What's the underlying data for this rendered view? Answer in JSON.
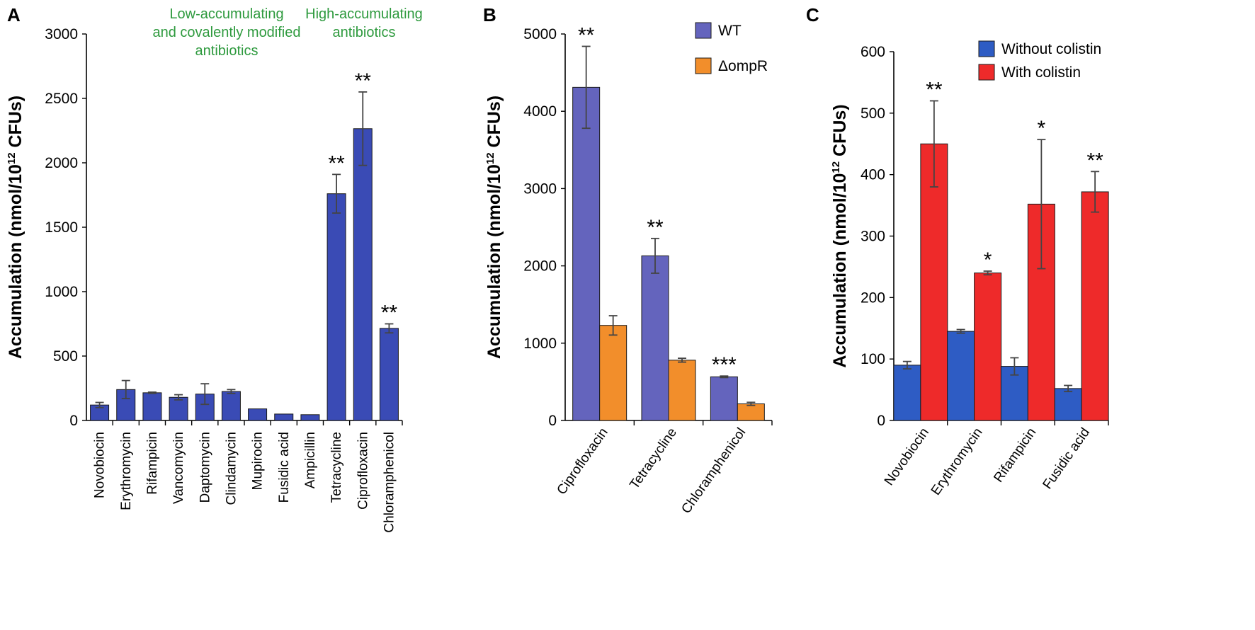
{
  "colors": {
    "bar_blue_a": "#3a4bb5",
    "bar_wt": "#6464bd",
    "bar_ompr": "#f28e2b",
    "bar_blue_c": "#2e5cc4",
    "bar_red": "#ee2a2a",
    "green_text": "#2e9a3e",
    "axis": "#000000",
    "error": "#444444"
  },
  "chart_data": [
    {
      "panel": "A",
      "type": "bar",
      "ylabel": "Accumulation (nmol/10¹² CFUs)",
      "ylim": [
        0,
        3000
      ],
      "yticks": [
        0,
        500,
        1000,
        1500,
        2000,
        2500,
        3000
      ],
      "categories": [
        "Novobiocin",
        "Erythromycin",
        "Rifampicin",
        "Vancomycin",
        "Daptomycin",
        "Clindamycin",
        "Mupirocin",
        "Fusidic acid",
        "Ampicillin",
        "Tetracycline",
        "Ciprofloxacin",
        "Chloramphenicol"
      ],
      "series": [
        {
          "name": "Accumulation",
          "color_key": "bar_blue_a",
          "values": [
            120,
            240,
            215,
            180,
            205,
            225,
            90,
            50,
            45,
            1760,
            2265,
            715
          ],
          "errors": [
            20,
            70,
            5,
            20,
            80,
            15,
            0,
            0,
            0,
            150,
            285,
            35
          ],
          "sig": [
            "",
            "",
            "",
            "",
            "",
            "",
            "",
            "",
            "",
            "**",
            "**",
            "**"
          ]
        }
      ],
      "group_labels": [
        {
          "text": [
            "Low-accumulating",
            "and covalently modified",
            "antibiotics"
          ],
          "over": [
            0,
            8
          ]
        },
        {
          "text": [
            "High-accumulating",
            "antibiotics"
          ],
          "over": [
            9,
            11
          ]
        }
      ]
    },
    {
      "panel": "B",
      "type": "bar",
      "ylabel": "Accumulation (nmol/10¹² CFUs)",
      "ylim": [
        0,
        5000
      ],
      "yticks": [
        0,
        1000,
        2000,
        3000,
        4000,
        5000
      ],
      "categories": [
        "Ciprofloxacin",
        "Tetracycline",
        "Chloramphenicol"
      ],
      "series": [
        {
          "name": "WT",
          "color_key": "bar_wt",
          "values": [
            4310,
            2130,
            565
          ],
          "errors": [
            530,
            225,
            10
          ],
          "sig": [
            "**",
            "**",
            "***"
          ]
        },
        {
          "name": "ΔompR",
          "color_key": "bar_ompr",
          "values": [
            1230,
            780,
            215
          ],
          "errors": [
            125,
            25,
            20
          ],
          "sig": [
            "",
            "",
            ""
          ]
        }
      ],
      "legend": "top-right"
    },
    {
      "panel": "C",
      "type": "bar",
      "ylabel": "Accumulation (nmol/10¹² CFUs)",
      "ylim": [
        0,
        600
      ],
      "yticks": [
        0,
        100,
        200,
        300,
        400,
        500,
        600
      ],
      "categories": [
        "Novobiocin",
        "Erythromycin",
        "Rifampicin",
        "Fusidic acid"
      ],
      "series": [
        {
          "name": "Without colistin",
          "color_key": "bar_blue_c",
          "values": [
            90,
            145,
            88,
            52
          ],
          "errors": [
            6,
            3,
            14,
            5
          ],
          "sig": [
            "",
            "",
            "",
            ""
          ]
        },
        {
          "name": "With colistin",
          "color_key": "bar_red",
          "values": [
            450,
            240,
            352,
            372
          ],
          "errors": [
            70,
            3,
            105,
            33
          ],
          "sig": [
            "**",
            "*",
            "*",
            "**"
          ]
        }
      ],
      "legend": "top-right"
    }
  ]
}
